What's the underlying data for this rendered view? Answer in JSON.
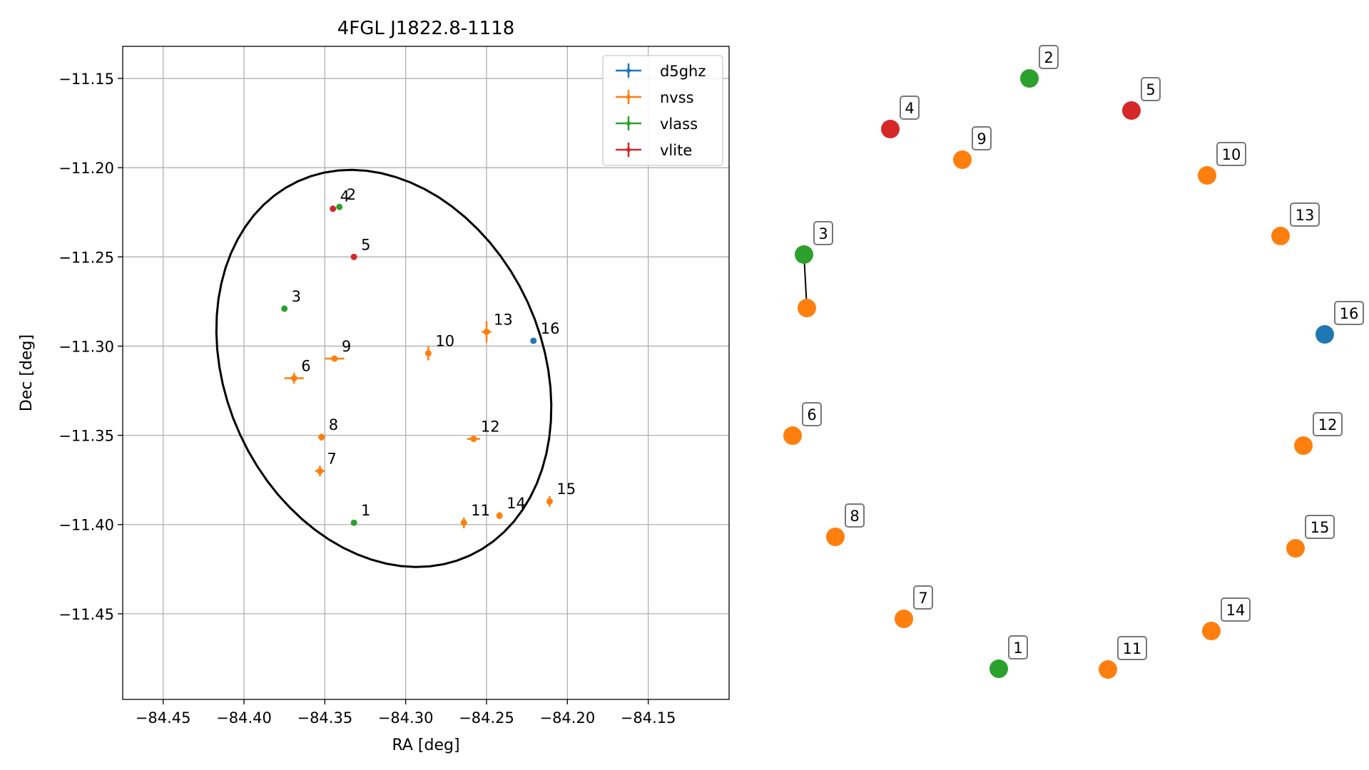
{
  "chart_data": [
    {
      "type": "scatter",
      "title": "4FGL J1822.8-1118",
      "xlabel": "RA [deg]",
      "ylabel": "Dec [deg]",
      "xlim": [
        -84.475,
        -84.1
      ],
      "ylim": [
        -11.498,
        -11.132
      ],
      "xticks": [
        -84.45,
        -84.4,
        -84.35,
        -84.3,
        -84.25,
        -84.2,
        -84.15
      ],
      "xtick_labels": [
        "−84.45",
        "−84.40",
        "−84.35",
        "−84.30",
        "−84.25",
        "−84.20",
        "−84.15"
      ],
      "yticks": [
        -11.15,
        -11.2,
        -11.25,
        -11.3,
        -11.35,
        -11.4,
        -11.45
      ],
      "ytick_labels": [
        "−11.15",
        "−11.20",
        "−11.25",
        "−11.30",
        "−11.35",
        "−11.40",
        "−11.45"
      ],
      "grid": true,
      "legend_position": "top-right",
      "series": [
        {
          "name": "d5ghz",
          "color": "#1f77b4"
        },
        {
          "name": "nvss",
          "color": "#ff7f0e"
        },
        {
          "name": "vlass",
          "color": "#2ca02c"
        },
        {
          "name": "vlite",
          "color": "#d62728"
        }
      ],
      "points": [
        {
          "label": "1",
          "series": "vlass",
          "x": -84.332,
          "y": -11.399,
          "xerr": 0.0,
          "yerr": 0.0
        },
        {
          "label": "2",
          "series": "vlass",
          "x": -84.341,
          "y": -11.222,
          "xerr": 0.0,
          "yerr": 0.0
        },
        {
          "label": "3",
          "series": "vlass",
          "x": -84.375,
          "y": -11.279,
          "xerr": 0.0,
          "yerr": 0.0
        },
        {
          "label": "4",
          "series": "vlite",
          "x": -84.345,
          "y": -11.223,
          "xerr": 0.0,
          "yerr": 0.0
        },
        {
          "label": "5",
          "series": "vlite",
          "x": -84.332,
          "y": -11.25,
          "xerr": 0.0,
          "yerr": 0.0
        },
        {
          "label": "6",
          "series": "nvss",
          "x": -84.369,
          "y": -11.318,
          "xerr": 0.006,
          "yerr": 0.003
        },
        {
          "label": "7",
          "series": "nvss",
          "x": -84.353,
          "y": -11.37,
          "xerr": 0.003,
          "yerr": 0.003
        },
        {
          "label": "8",
          "series": "nvss",
          "x": -84.352,
          "y": -11.351,
          "xerr": 0.002,
          "yerr": 0.002
        },
        {
          "label": "9",
          "series": "nvss",
          "x": -84.344,
          "y": -11.307,
          "xerr": 0.006,
          "yerr": 0.001
        },
        {
          "label": "10",
          "series": "nvss",
          "x": -84.286,
          "y": -11.304,
          "xerr": 0.001,
          "yerr": 0.004
        },
        {
          "label": "11",
          "series": "nvss",
          "x": -84.264,
          "y": -11.399,
          "xerr": 0.001,
          "yerr": 0.003
        },
        {
          "label": "12",
          "series": "nvss",
          "x": -84.258,
          "y": -11.352,
          "xerr": 0.004,
          "yerr": 0.001
        },
        {
          "label": "13",
          "series": "nvss",
          "x": -84.25,
          "y": -11.292,
          "xerr": 0.003,
          "yerr": 0.006
        },
        {
          "label": "14",
          "series": "nvss",
          "x": -84.242,
          "y": -11.395,
          "xerr": 0.001,
          "yerr": 0.002
        },
        {
          "label": "15",
          "series": "nvss",
          "x": -84.211,
          "y": -11.387,
          "xerr": 0.001,
          "yerr": 0.003
        },
        {
          "label": "16",
          "series": "d5ghz",
          "x": -84.221,
          "y": -11.297,
          "xerr": 0.0,
          "yerr": 0.0
        }
      ],
      "ellipse": {
        "center": [
          -84.3135,
          -11.3125
        ],
        "semi_major": 0.1182,
        "semi_minor": 0.0956,
        "angle_deg": 125,
        "color": "#000000"
      }
    },
    {
      "type": "scatter",
      "grid": false,
      "axes": false,
      "points": [
        {
          "label": "1",
          "color": "#2ca02c"
        },
        {
          "label": "2",
          "color": "#2ca02c"
        },
        {
          "label": "3",
          "color": "#2ca02c"
        },
        {
          "label": "4",
          "color": "#d62728"
        },
        {
          "label": "5",
          "color": "#d62728"
        },
        {
          "label": "6",
          "color": "#ff7f0e"
        },
        {
          "label": "7",
          "color": "#ff7f0e"
        },
        {
          "label": "8",
          "color": "#ff7f0e"
        },
        {
          "label": "9",
          "color": "#ff7f0e"
        },
        {
          "label": "10",
          "color": "#ff7f0e"
        },
        {
          "label": "11",
          "color": "#ff7f0e"
        },
        {
          "label": "12",
          "color": "#ff7f0e"
        },
        {
          "label": "13",
          "color": "#ff7f0e"
        },
        {
          "label": "14",
          "color": "#ff7f0e"
        },
        {
          "label": "15",
          "color": "#ff7f0e"
        },
        {
          "label": "16",
          "color": "#1f77b4"
        }
      ],
      "link": [
        "3",
        "unlabeled-nvss"
      ],
      "unlabeled_point_color": "#ff7f0e"
    }
  ]
}
